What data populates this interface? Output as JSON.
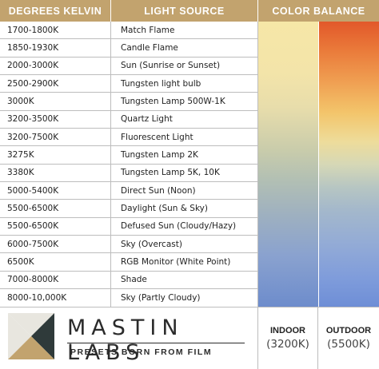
{
  "header": {
    "kelvin": "DEGREES KELVIN",
    "source": "LIGHT SOURCE",
    "balance": "COLOR BALANCE"
  },
  "rows": [
    {
      "kelvin": "1700-1800K",
      "source": "Match Flame"
    },
    {
      "kelvin": "1850-1930K",
      "source": "Candle Flame"
    },
    {
      "kelvin": "2000-3000K",
      "source": "Sun (Sunrise or Sunset)"
    },
    {
      "kelvin": "2500-2900K",
      "source": "Tungsten light bulb"
    },
    {
      "kelvin": "3000K",
      "source": "Tungsten Lamp 500W-1K"
    },
    {
      "kelvin": "3200-3500K",
      "source": "Quartz Light"
    },
    {
      "kelvin": "3200-7500K",
      "source": "Fluorescent Light"
    },
    {
      "kelvin": "3275K",
      "source": "Tungsten Lamp 2K"
    },
    {
      "kelvin": "3380K",
      "source": "Tungsten Lamp 5K, 10K"
    },
    {
      "kelvin": "5000-5400K",
      "source": "Direct Sun (Noon)"
    },
    {
      "kelvin": "5500-6500K",
      "source": "Daylight (Sun & Sky)"
    },
    {
      "kelvin": "5500-6500K",
      "source": "Defused Sun (Cloudy/Hazy)"
    },
    {
      "kelvin": "6000-7500K",
      "source": "Sky (Overcast)"
    },
    {
      "kelvin": "6500K",
      "source": "RGB Monitor (White Point)"
    },
    {
      "kelvin": "7000-8000K",
      "source": "Shade"
    },
    {
      "kelvin": "8000-10,000K",
      "source": "Sky (Partly Cloudy)"
    }
  ],
  "brand": {
    "name": "MASTIN LABS",
    "tagline": "PRESETS BORN FROM FILM",
    "logo_colors": [
      "#c2a36e",
      "#2f3a3a",
      "#e8e6df"
    ]
  },
  "presets": {
    "indoor_label": "INDOOR",
    "indoor_value": "(3200K)",
    "outdoor_label": "OUTDOOR",
    "outdoor_value": "(5500K)"
  },
  "colors": {
    "header_bg": "#c2a36e",
    "indoor_top": "#f6e7a7",
    "indoor_bottom": "#6d8ccc",
    "outdoor_top": "#e2582a",
    "outdoor_bottom": "#6e8ed6"
  }
}
